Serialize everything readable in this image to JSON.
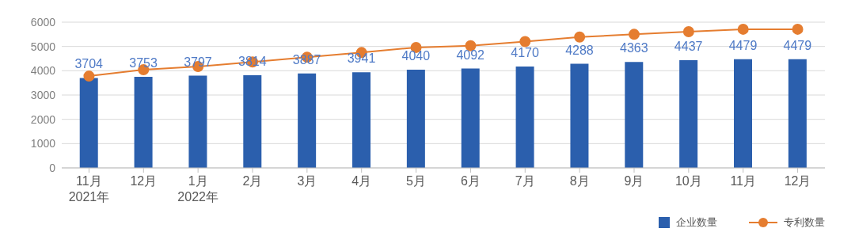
{
  "chart_data": {
    "type": "bar",
    "categories": [
      "11月\n2021年",
      "12月",
      "1月\n2022年",
      "2月",
      "3月",
      "4月",
      "5月",
      "6月",
      "7月",
      "8月",
      "9月",
      "10月",
      "11月",
      "12月"
    ],
    "series": [
      {
        "name": "企业数量",
        "color": "#2b5fad",
        "values": [
          3704,
          3753,
          3797,
          3814,
          3887,
          3941,
          4040,
          4092,
          4170,
          4288,
          4363,
          4437,
          4479,
          4479
        ],
        "data_labels": true
      },
      {
        "name": "专利数量",
        "type": "line",
        "color": "#e57d30",
        "marker": "circle",
        "values": [
          3780,
          4040,
          4170,
          4360,
          4560,
          4750,
          4960,
          5030,
          5200,
          5390,
          5500,
          5610,
          5710,
          5710
        ]
      }
    ],
    "ylim": [
      0,
      6000
    ],
    "yticks": [
      0,
      1000,
      2000,
      3000,
      4000,
      5000,
      6000
    ],
    "grid": "y",
    "legend": "bottom right"
  }
}
